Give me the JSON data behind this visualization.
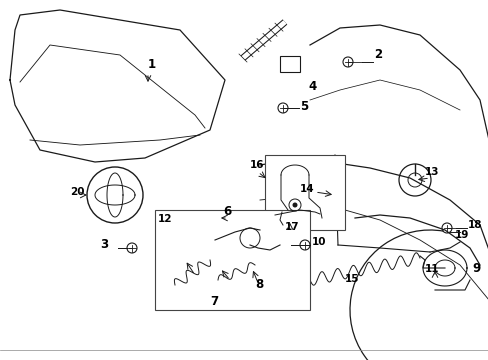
{
  "bg_color": "#ffffff",
  "line_color": "#1a1a1a",
  "label_color": "#000000",
  "figsize": [
    4.89,
    3.6
  ],
  "dpi": 100,
  "xlim": [
    0,
    489
  ],
  "ylim": [
    0,
    360
  ]
}
